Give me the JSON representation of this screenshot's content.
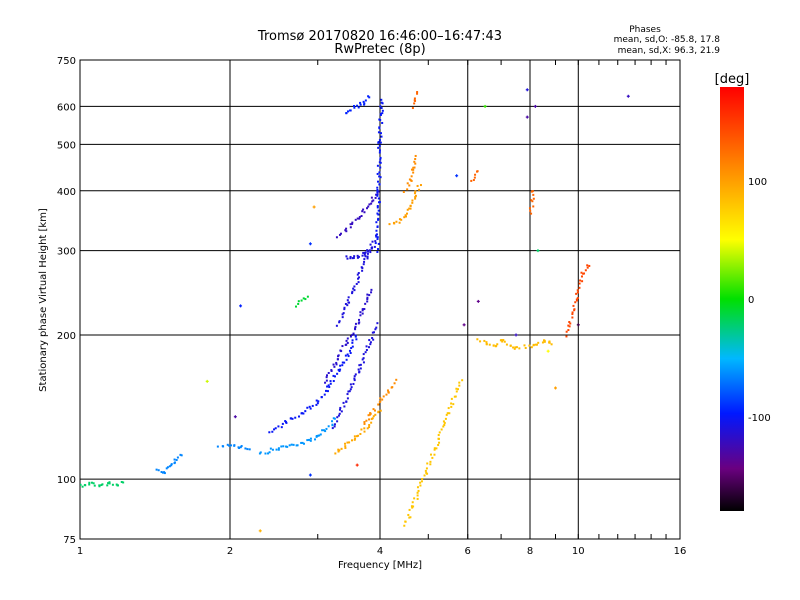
{
  "chart_data": {
    "type": "scatter",
    "title": "Tromsø 20170820 16:46:00–16:47:43",
    "subtitle": "RwPretec (8p)",
    "xlabel": "Frequency [MHz]",
    "ylabel": "Stationary phase Virtual Height [km]",
    "x_scale": "log",
    "y_scale": "log",
    "xlim": [
      1,
      16
    ],
    "ylim": [
      75,
      750
    ],
    "x_ticks": [
      "1",
      "2",
      "4",
      "6",
      "8",
      "10",
      "16"
    ],
    "y_ticks": [
      "75",
      "100",
      "200",
      "300",
      "400",
      "500",
      "600",
      "750"
    ],
    "grid": true,
    "phase_stats": {
      "title": "Phases",
      "o_line": "mean, sd,O: -85.8, 17.8",
      "x_line": "mean, sd,X: 96.3, 21.9"
    },
    "colorbar": {
      "label": "[deg]",
      "range": [
        -180,
        180
      ],
      "ticks": [
        "100",
        "0",
        "-100"
      ],
      "tick_values": [
        100,
        0,
        -100
      ]
    },
    "traces": [
      {
        "x": [
          1.0,
          1.04,
          1.1,
          1.14,
          1.18,
          1.22
        ],
        "y": [
          97,
          98,
          97,
          98,
          97,
          99
        ],
        "phase": -20
      },
      {
        "x": [
          1.42,
          1.47,
          1.52,
          1.56,
          1.6
        ],
        "y": [
          104,
          103,
          106,
          110,
          113
        ],
        "phase": -65
      },
      {
        "x": [
          1.9,
          2.0,
          2.1,
          2.2
        ],
        "y": [
          117,
          118,
          117,
          116
        ],
        "phase": -65
      },
      {
        "x": [
          2.3,
          2.5,
          2.7,
          2.9,
          3.0,
          3.1,
          3.2,
          3.25
        ],
        "y": [
          113,
          116,
          118,
          120,
          123,
          127,
          130,
          134
        ],
        "phase": -60
      },
      {
        "x": [
          2.4,
          2.6,
          2.8,
          3.0,
          3.15,
          3.3,
          3.45,
          3.6
        ],
        "y": [
          125,
          132,
          138,
          145,
          155,
          168,
          182,
          200
        ],
        "phase": -100
      },
      {
        "x": [
          3.2,
          3.35,
          3.5,
          3.65,
          3.8,
          3.95
        ],
        "y": [
          128,
          140,
          155,
          170,
          190,
          210
        ],
        "phase": -110
      },
      {
        "x": [
          3.1,
          3.25,
          3.4,
          3.55,
          3.7,
          3.85
        ],
        "y": [
          160,
          175,
          190,
          205,
          225,
          250
        ],
        "phase": -115
      },
      {
        "x": [
          3.3,
          3.45,
          3.6,
          3.75,
          3.9
        ],
        "y": [
          210,
          235,
          260,
          290,
          320
        ],
        "phase": -110
      },
      {
        "x": [
          3.4,
          3.5,
          3.6,
          3.7,
          3.8,
          3.9
        ],
        "y": [
          290,
          290,
          292,
          295,
          300,
          305
        ],
        "phase": -110
      },
      {
        "x": [
          3.3,
          3.5,
          3.7,
          3.85,
          3.95
        ],
        "y": [
          320,
          340,
          360,
          380,
          400
        ],
        "phase": -120
      },
      {
        "x": [
          3.95,
          3.98,
          4.0,
          4.02,
          4.04
        ],
        "y": [
          300,
          400,
          500,
          580,
          620
        ],
        "phase": -100
      },
      {
        "x": [
          3.4,
          3.5,
          3.6,
          3.7,
          3.8
        ],
        "y": [
          580,
          590,
          600,
          610,
          630
        ],
        "phase": -95
      },
      {
        "x": [
          3.25,
          3.4,
          3.55,
          3.7,
          3.85,
          4.0
        ],
        "y": [
          113,
          117,
          121,
          126,
          133,
          140
        ],
        "phase": 95
      },
      {
        "x": [
          3.7,
          3.85,
          4.0,
          4.15,
          4.3
        ],
        "y": [
          130,
          138,
          145,
          152,
          160
        ],
        "phase": 110
      },
      {
        "x": [
          4.2,
          4.35,
          4.5,
          4.6,
          4.7,
          4.8
        ],
        "y": [
          340,
          345,
          355,
          370,
          390,
          410
        ],
        "phase": 100
      },
      {
        "x": [
          4.5,
          4.6,
          4.7,
          4.75
        ],
        "y": [
          400,
          420,
          450,
          470
        ],
        "phase": 110
      },
      {
        "x": [
          4.65,
          4.75
        ],
        "y": [
          600,
          640
        ],
        "phase": 130
      },
      {
        "x": [
          6.3,
          6.5,
          6.8,
          7.0,
          7.4,
          8.2,
          8.6,
          8.9
        ],
        "y": [
          195,
          193,
          189,
          195,
          188,
          190,
          195,
          190
        ],
        "phase": 85
      },
      {
        "x": [
          8.05,
          8.1
        ],
        "y": [
          360,
          400
        ],
        "phase": 130
      },
      {
        "x": [
          9.5,
          10.2,
          10.6
        ],
        "y": [
          200,
          270,
          280
        ],
        "phase": 145
      },
      {
        "x": [
          4.5,
          5.8
        ],
        "y": [
          80,
          160
        ],
        "phase": 80
      },
      {
        "x": [
          2.7,
          2.85
        ],
        "y": [
          230,
          240
        ],
        "phase": -10
      },
      {
        "x": [
          6.1,
          6.3
        ],
        "y": [
          420,
          440
        ],
        "phase": 130
      }
    ],
    "points": [
      {
        "x": 1.8,
        "y": 160,
        "phase": 40
      },
      {
        "x": 2.05,
        "y": 135,
        "phase": -130
      },
      {
        "x": 2.1,
        "y": 230,
        "phase": -95
      },
      {
        "x": 2.3,
        "y": 78,
        "phase": 90
      },
      {
        "x": 2.9,
        "y": 102,
        "phase": -90
      },
      {
        "x": 2.9,
        "y": 310,
        "phase": -90
      },
      {
        "x": 2.95,
        "y": 370,
        "phase": 100
      },
      {
        "x": 3.6,
        "y": 107,
        "phase": 160
      },
      {
        "x": 5.7,
        "y": 430,
        "phase": -90
      },
      {
        "x": 5.9,
        "y": 210,
        "phase": -140
      },
      {
        "x": 6.3,
        "y": 235,
        "phase": -140
      },
      {
        "x": 6.5,
        "y": 600,
        "phase": 10
      },
      {
        "x": 7.5,
        "y": 200,
        "phase": -120
      },
      {
        "x": 7.9,
        "y": 650,
        "phase": -110
      },
      {
        "x": 7.9,
        "y": 570,
        "phase": -130
      },
      {
        "x": 8.2,
        "y": 600,
        "phase": -130
      },
      {
        "x": 8.3,
        "y": 300,
        "phase": -20
      },
      {
        "x": 8.7,
        "y": 185,
        "phase": 50
      },
      {
        "x": 9.0,
        "y": 155,
        "phase": 100
      },
      {
        "x": 10.0,
        "y": 210,
        "phase": -160
      },
      {
        "x": 12.6,
        "y": 630,
        "phase": -120
      }
    ]
  }
}
